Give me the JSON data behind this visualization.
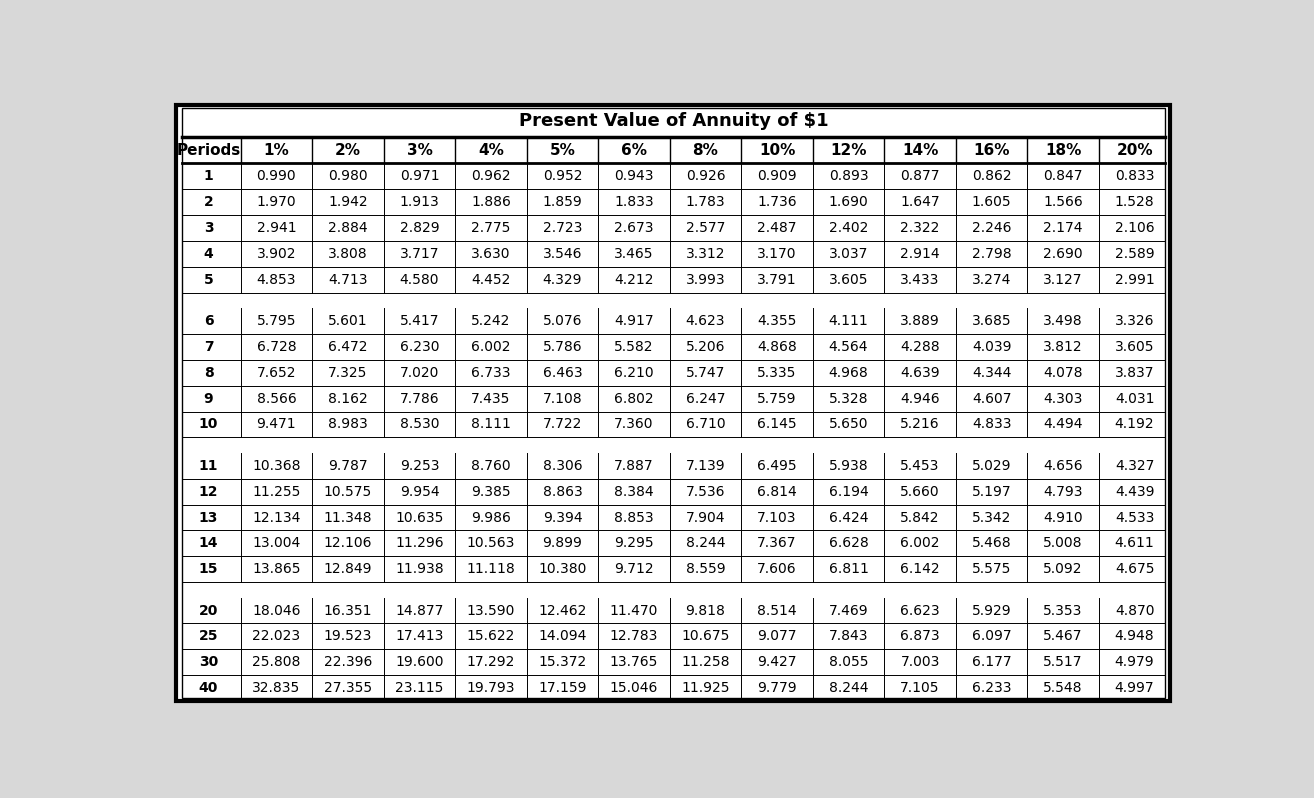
{
  "title": "Present Value of Annuity of $1",
  "columns": [
    "Periods",
    "1%",
    "2%",
    "3%",
    "4%",
    "5%",
    "6%",
    "8%",
    "10%",
    "12%",
    "14%",
    "16%",
    "18%",
    "20%"
  ],
  "rows": [
    [
      "1",
      "0.990",
      "0.980",
      "0.971",
      "0.962",
      "0.952",
      "0.943",
      "0.926",
      "0.909",
      "0.893",
      "0.877",
      "0.862",
      "0.847",
      "0.833"
    ],
    [
      "2",
      "1.970",
      "1.942",
      "1.913",
      "1.886",
      "1.859",
      "1.833",
      "1.783",
      "1.736",
      "1.690",
      "1.647",
      "1.605",
      "1.566",
      "1.528"
    ],
    [
      "3",
      "2.941",
      "2.884",
      "2.829",
      "2.775",
      "2.723",
      "2.673",
      "2.577",
      "2.487",
      "2.402",
      "2.322",
      "2.246",
      "2.174",
      "2.106"
    ],
    [
      "4",
      "3.902",
      "3.808",
      "3.717",
      "3.630",
      "3.546",
      "3.465",
      "3.312",
      "3.170",
      "3.037",
      "2.914",
      "2.798",
      "2.690",
      "2.589"
    ],
    [
      "5",
      "4.853",
      "4.713",
      "4.580",
      "4.452",
      "4.329",
      "4.212",
      "3.993",
      "3.791",
      "3.605",
      "3.433",
      "3.274",
      "3.127",
      "2.991"
    ],
    [
      "6",
      "5.795",
      "5.601",
      "5.417",
      "5.242",
      "5.076",
      "4.917",
      "4.623",
      "4.355",
      "4.111",
      "3.889",
      "3.685",
      "3.498",
      "3.326"
    ],
    [
      "7",
      "6.728",
      "6.472",
      "6.230",
      "6.002",
      "5.786",
      "5.582",
      "5.206",
      "4.868",
      "4.564",
      "4.288",
      "4.039",
      "3.812",
      "3.605"
    ],
    [
      "8",
      "7.652",
      "7.325",
      "7.020",
      "6.733",
      "6.463",
      "6.210",
      "5.747",
      "5.335",
      "4.968",
      "4.639",
      "4.344",
      "4.078",
      "3.837"
    ],
    [
      "9",
      "8.566",
      "8.162",
      "7.786",
      "7.435",
      "7.108",
      "6.802",
      "6.247",
      "5.759",
      "5.328",
      "4.946",
      "4.607",
      "4.303",
      "4.031"
    ],
    [
      "10",
      "9.471",
      "8.983",
      "8.530",
      "8.111",
      "7.722",
      "7.360",
      "6.710",
      "6.145",
      "5.650",
      "5.216",
      "4.833",
      "4.494",
      "4.192"
    ],
    [
      "11",
      "10.368",
      "9.787",
      "9.253",
      "8.760",
      "8.306",
      "7.887",
      "7.139",
      "6.495",
      "5.938",
      "5.453",
      "5.029",
      "4.656",
      "4.327"
    ],
    [
      "12",
      "11.255",
      "10.575",
      "9.954",
      "9.385",
      "8.863",
      "8.384",
      "7.536",
      "6.814",
      "6.194",
      "5.660",
      "5.197",
      "4.793",
      "4.439"
    ],
    [
      "13",
      "12.134",
      "11.348",
      "10.635",
      "9.986",
      "9.394",
      "8.853",
      "7.904",
      "7.103",
      "6.424",
      "5.842",
      "5.342",
      "4.910",
      "4.533"
    ],
    [
      "14",
      "13.004",
      "12.106",
      "11.296",
      "10.563",
      "9.899",
      "9.295",
      "8.244",
      "7.367",
      "6.628",
      "6.002",
      "5.468",
      "5.008",
      "4.611"
    ],
    [
      "15",
      "13.865",
      "12.849",
      "11.938",
      "11.118",
      "10.380",
      "9.712",
      "8.559",
      "7.606",
      "6.811",
      "6.142",
      "5.575",
      "5.092",
      "4.675"
    ],
    [
      "20",
      "18.046",
      "16.351",
      "14.877",
      "13.590",
      "12.462",
      "11.470",
      "9.818",
      "8.514",
      "7.469",
      "6.623",
      "5.929",
      "5.353",
      "4.870"
    ],
    [
      "25",
      "22.023",
      "19.523",
      "17.413",
      "15.622",
      "14.094",
      "12.783",
      "10.675",
      "9.077",
      "7.843",
      "6.873",
      "6.097",
      "5.467",
      "4.948"
    ],
    [
      "30",
      "25.808",
      "22.396",
      "19.600",
      "17.292",
      "15.372",
      "13.765",
      "11.258",
      "9.427",
      "8.055",
      "7.003",
      "6.177",
      "5.517",
      "4.979"
    ],
    [
      "40",
      "32.835",
      "27.355",
      "23.115",
      "19.793",
      "17.159",
      "15.046",
      "11.925",
      "9.779",
      "8.244",
      "7.105",
      "6.233",
      "5.548",
      "4.997"
    ]
  ],
  "group_separators_after": [
    4,
    9,
    14
  ],
  "outer_bg": "#d8d8d8",
  "table_bg": "#ffffff",
  "border_color": "#000000",
  "title_fontsize": 13,
  "header_fontsize": 11,
  "cell_fontsize": 10,
  "periods_fontsize": 10
}
